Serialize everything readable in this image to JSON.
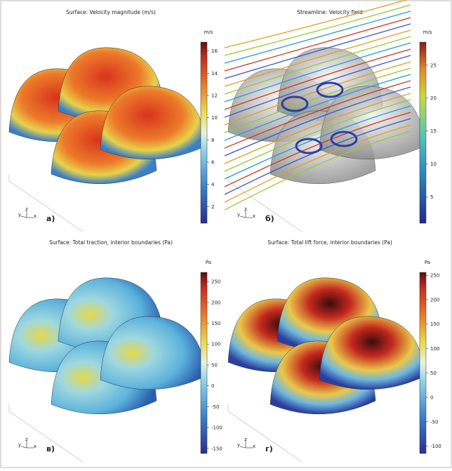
{
  "panels": [
    {
      "title": "Surface: Velocity magnitude (m/s)",
      "unit": "m/s",
      "label": "a)",
      "clim": [
        0.5,
        16.8
      ],
      "ticks": [
        2,
        4,
        6,
        8,
        10,
        12,
        14,
        16
      ]
    },
    {
      "title": "Streamline: Velocity field",
      "unit": "m/s",
      "label": "б)",
      "clim": [
        1,
        28.5
      ],
      "ticks": [
        5,
        10,
        15,
        20,
        25
      ]
    },
    {
      "title": "Surface: Total traction, interior boundaries (Pa)",
      "unit": "Pa",
      "label": "в)",
      "clim": [
        -162,
        272
      ],
      "ticks": [
        -150,
        -100,
        -50,
        0,
        50,
        100,
        150,
        200,
        250
      ]
    },
    {
      "title": "Surface: Total lift force, interior boundaries (Pa)",
      "unit": "Pa",
      "label": "г)",
      "clim": [
        -115,
        256
      ],
      "ticks": [
        -100,
        -50,
        0,
        50,
        100,
        150,
        200,
        250
      ]
    }
  ],
  "triad": [
    "y",
    "z",
    "x"
  ]
}
